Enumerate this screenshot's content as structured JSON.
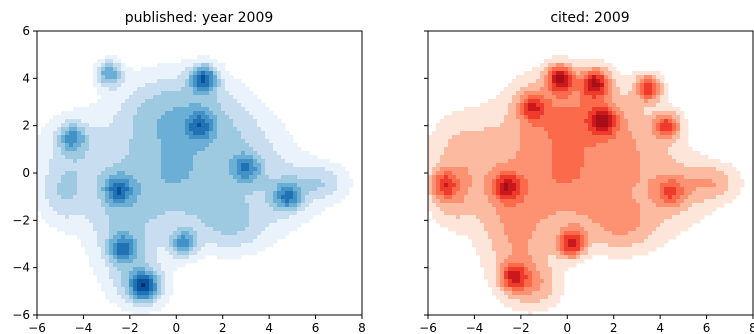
{
  "chart_data": [
    {
      "type": "heatmap",
      "subtype": "kde-filled-contour",
      "title": "published: year 2009",
      "xlabel": "",
      "ylabel": "",
      "xlim": [
        -6,
        8
      ],
      "ylim": [
        -6,
        6
      ],
      "xticks": [
        "−6",
        "−4",
        "−2",
        "0",
        "2",
        "4",
        "6",
        "8"
      ],
      "yticks": [
        "6",
        "4",
        "2",
        "0",
        "−2",
        "−4",
        "−6"
      ],
      "colormap": "Blues",
      "colors": [
        "#eaf2fb",
        "#c9ddf0",
        "#9ecae1",
        "#6baed6",
        "#4292c6",
        "#2171b5",
        "#08519c",
        "#08306b"
      ],
      "density_peaks": [
        {
          "x": 1.2,
          "y": 4.0,
          "level": 8
        },
        {
          "x": -1.4,
          "y": -4.8,
          "level": 8
        },
        {
          "x": -2.3,
          "y": -3.2,
          "level": 6
        },
        {
          "x": -2.5,
          "y": -0.7,
          "level": 6
        },
        {
          "x": -4.5,
          "y": 1.5,
          "level": 5
        },
        {
          "x": 4.8,
          "y": -1.0,
          "level": 6
        },
        {
          "x": 0.3,
          "y": -3.0,
          "level": 6
        },
        {
          "x": -2.9,
          "y": 4.2,
          "level": 6
        },
        {
          "x": 3.0,
          "y": 0.2,
          "level": 5
        },
        {
          "x": 1.0,
          "y": 2.0,
          "level": 5
        }
      ]
    },
    {
      "type": "heatmap",
      "subtype": "kde-filled-contour",
      "title": "cited: 2009",
      "xlabel": "",
      "ylabel": "",
      "xlim": [
        -6,
        8
      ],
      "ylim": [
        -6,
        6
      ],
      "xticks": [
        "−6",
        "−4",
        "−2",
        "0",
        "2",
        "4",
        "6",
        "8"
      ],
      "yticks": [],
      "colormap": "Reds",
      "colors": [
        "#fee5d9",
        "#fcbba1",
        "#fc9272",
        "#fb6a4a",
        "#ef3b2c",
        "#cb181d",
        "#a50f15",
        "#67000d"
      ],
      "density_peaks": [
        {
          "x": -0.3,
          "y": 4.0,
          "level": 8
        },
        {
          "x": 1.2,
          "y": 3.8,
          "level": 8
        },
        {
          "x": 3.5,
          "y": 3.6,
          "level": 7
        },
        {
          "x": 4.3,
          "y": 2.0,
          "level": 6
        },
        {
          "x": 1.5,
          "y": 2.2,
          "level": 7
        },
        {
          "x": -2.6,
          "y": -0.6,
          "level": 6
        },
        {
          "x": 0.2,
          "y": -3.0,
          "level": 8
        },
        {
          "x": -2.3,
          "y": -4.4,
          "level": 6
        },
        {
          "x": -5.3,
          "y": -0.5,
          "level": 5
        },
        {
          "x": -1.5,
          "y": 2.8,
          "level": 5
        },
        {
          "x": 4.5,
          "y": -0.8,
          "level": 4
        }
      ]
    }
  ]
}
